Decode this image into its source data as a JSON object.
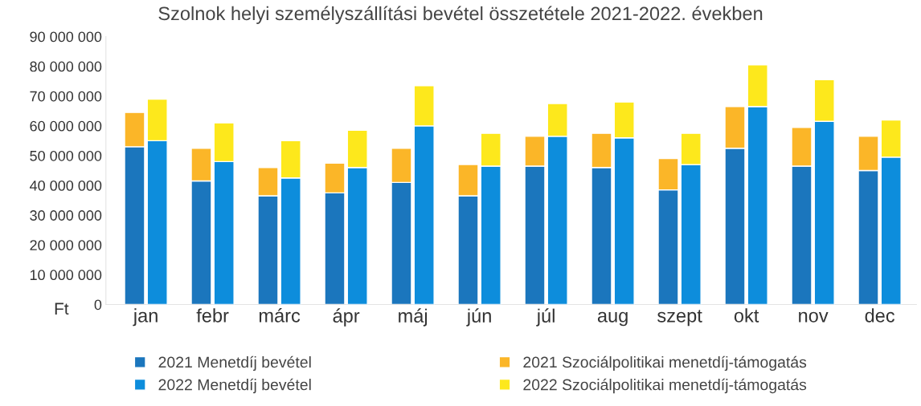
{
  "chart_data": [
    {
      "type": "bar",
      "title": "Szolnok helyi személyszállítási bevétel összetétele 2021-2022. években",
      "ylabel": "Ft",
      "categories": [
        "jan",
        "febr",
        "márc",
        "ápr",
        "máj",
        "jún",
        "júl",
        "aug",
        "szept",
        "okt",
        "nov",
        "dec"
      ],
      "stacked": true,
      "series": [
        {
          "name": "2021 Menetdíj bevétel",
          "color": "#1b76bd",
          "values": [
            53000000,
            41500000,
            36500000,
            37500000,
            41000000,
            36500000,
            46500000,
            46000000,
            38500000,
            52500000,
            46500000,
            45000000
          ]
        },
        {
          "name": "2021 Szociálpolitikai menetdíj-támogatás",
          "color": "#fbb628",
          "values": [
            11500000,
            11000000,
            9500000,
            10000000,
            11500000,
            10500000,
            10000000,
            11500000,
            10500000,
            14000000,
            13000000,
            11500000
          ]
        }
      ],
      "ylim": [
        0,
        90000000
      ],
      "yticks": [
        0,
        {
          "value": 10000000,
          "label": "10 000 000"
        },
        {
          "value": 20000000,
          "label": "20 000 000"
        },
        {
          "value": 30000000,
          "label": "30 000 000"
        },
        {
          "value": 40000000,
          "label": "40 000 000"
        },
        {
          "value": 50000000,
          "label": "50 000 000"
        },
        {
          "value": 60000000,
          "label": "60 000 000"
        },
        {
          "value": 70000000,
          "label": "70 000 000"
        },
        {
          "value": 80000000,
          "label": "80 000 000"
        },
        {
          "value": 90000000,
          "label": "90 000 000"
        }
      ],
      "legend": "bottom"
    },
    {
      "type": "bar",
      "stacked": true,
      "series": [
        {
          "name": "2022 Menetdíj bevétel",
          "color": "#0d8ddc",
          "values": [
            55000000,
            48000000,
            42500000,
            46000000,
            60000000,
            46500000,
            56500000,
            56000000,
            47000000,
            66500000,
            61500000,
            49500000
          ]
        },
        {
          "name": "2022 Szociálpolitikai menetdíj-támogatás",
          "color": "#fde81c",
          "values": [
            14000000,
            13000000,
            12500000,
            12500000,
            13500000,
            11000000,
            11000000,
            12000000,
            10500000,
            14000000,
            14000000,
            12500000
          ]
        }
      ],
      "ylim": [
        0,
        90000000
      ],
      "tick_labels": false,
      "legend": "bottom"
    }
  ]
}
